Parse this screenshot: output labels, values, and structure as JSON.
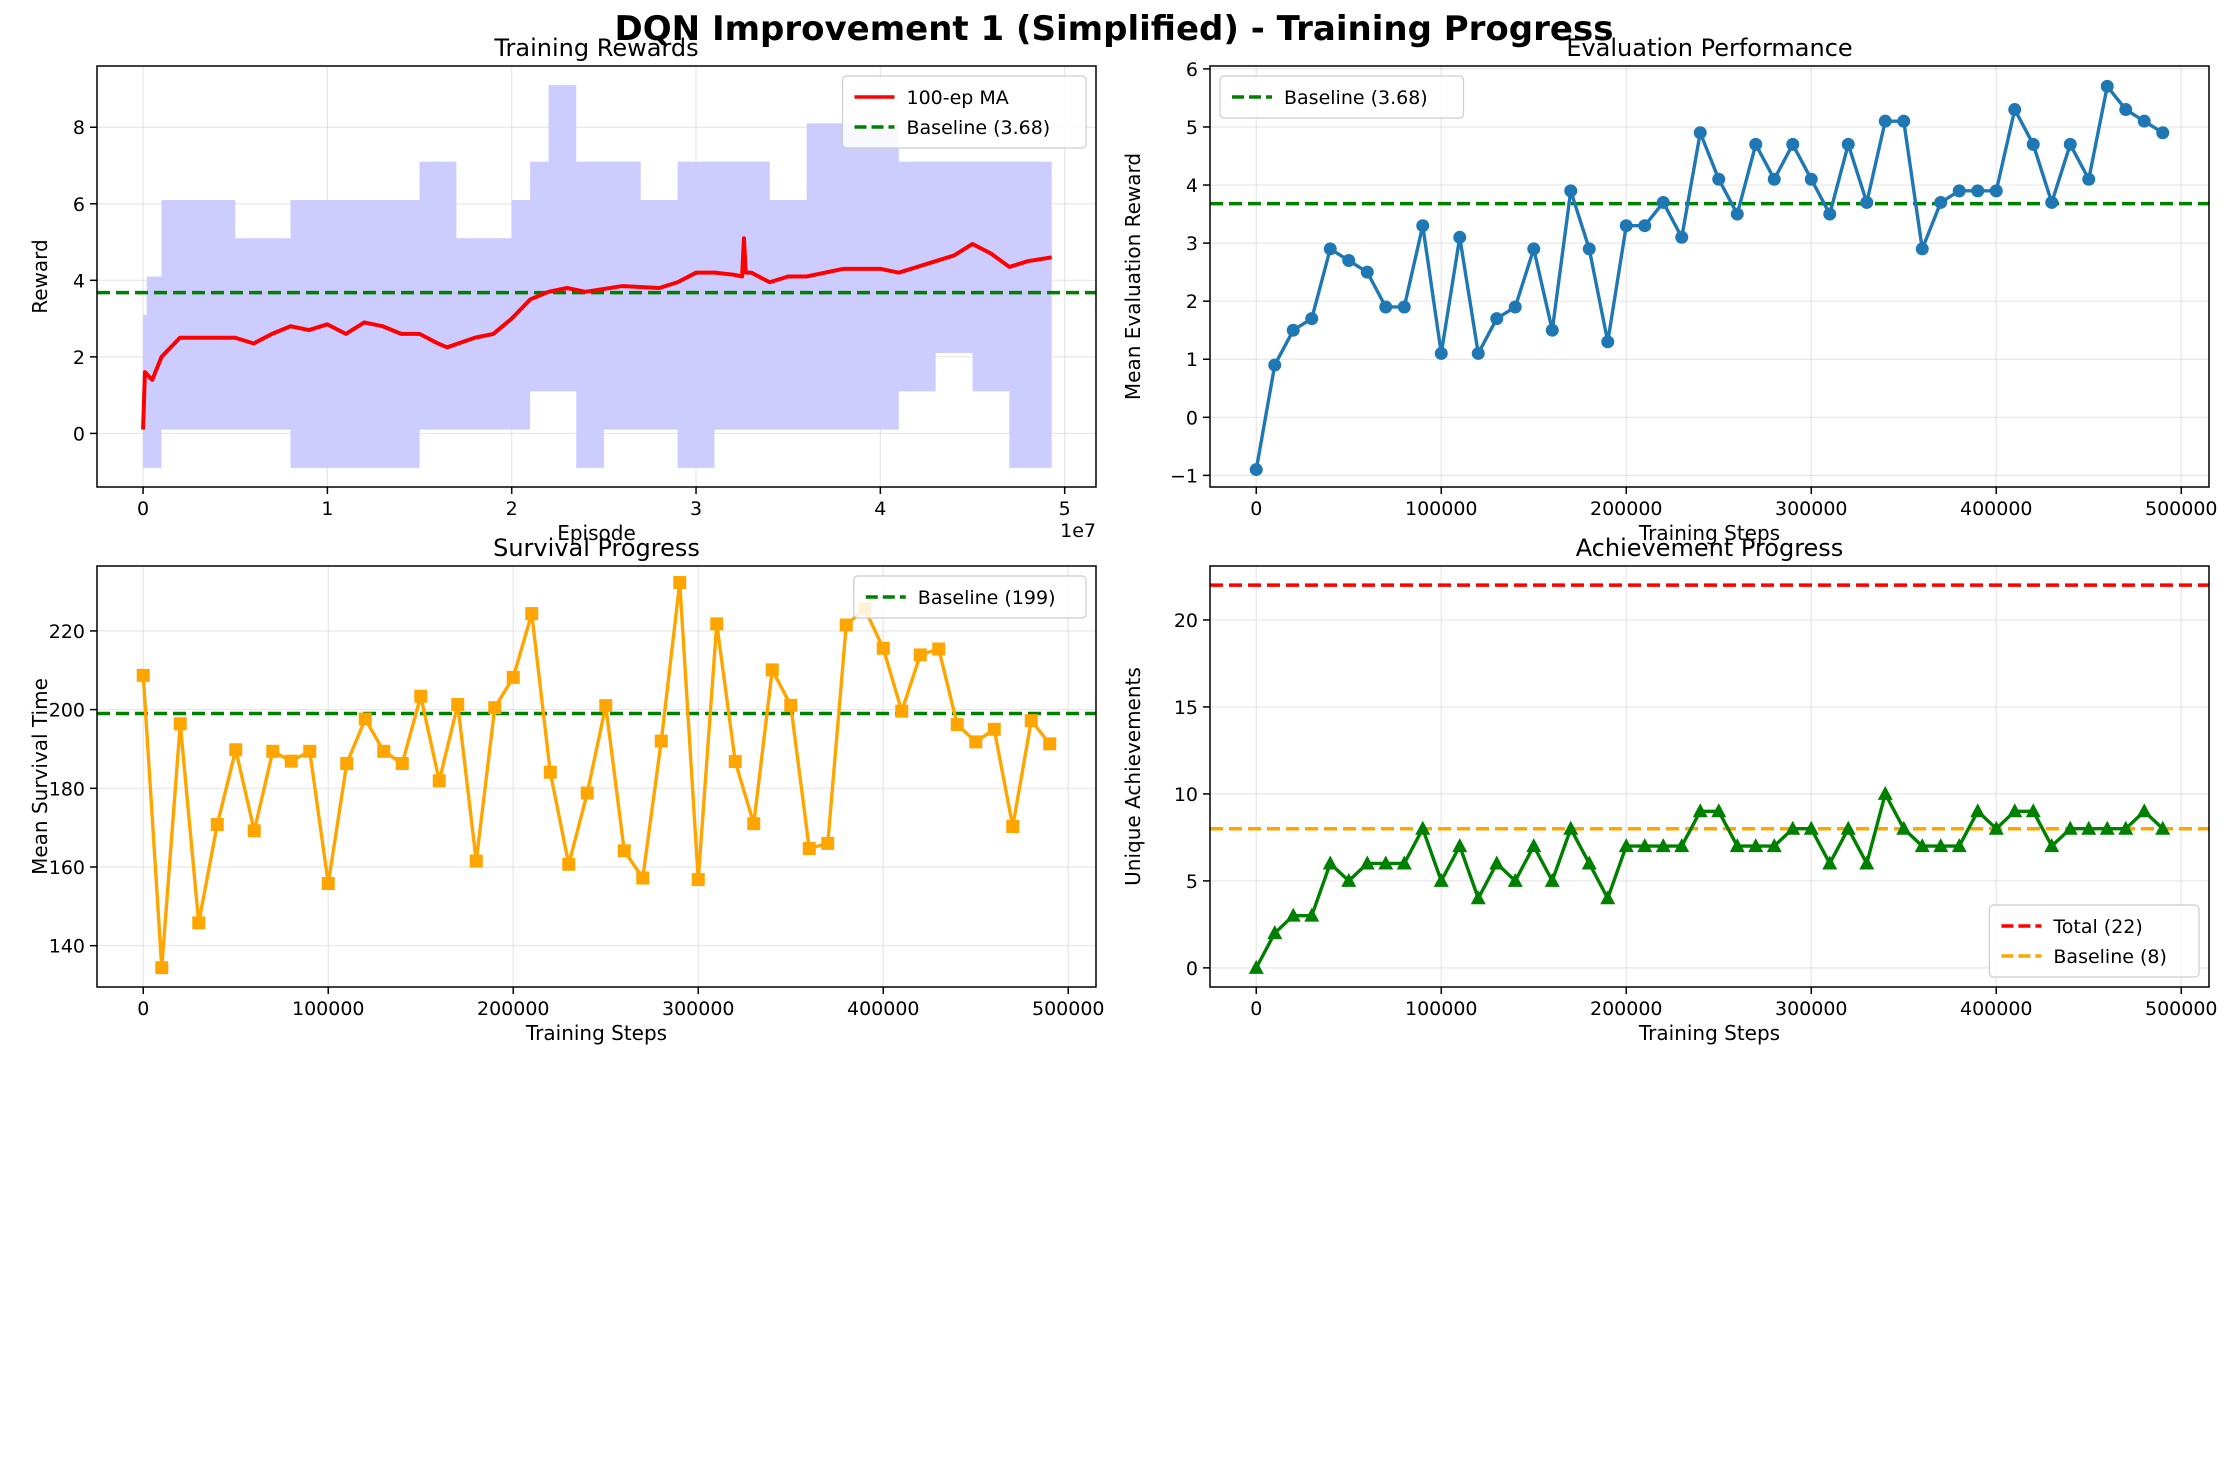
{
  "figure": {
    "title": "DQN Improvement 1 (Simplified) - Training Progress"
  },
  "chart_data": [
    {
      "id": "rewards",
      "type": "line",
      "title": "Training Rewards",
      "xlabel": "Episode",
      "ylabel": "Reward",
      "xlim": [
        -2500000.0,
        51700000.0
      ],
      "ylim": [
        -1.4,
        9.6
      ],
      "x_offset_label": "1e7",
      "xticks": [
        0,
        10000000.0,
        20000000.0,
        30000000.0,
        40000000.0,
        50000000.0
      ],
      "xtick_labels": [
        "0",
        "1",
        "2",
        "3",
        "4",
        "5"
      ],
      "yticks": [
        0,
        2,
        4,
        6,
        8
      ],
      "grid": true,
      "legend": "top-right",
      "band": {
        "color": "#ccccff",
        "x": [
          0,
          200000.0,
          500000.0,
          1000000.0,
          3000000.0,
          5000000.0,
          8000000.0,
          11000000.0,
          13000000.0,
          15000000.0,
          17000000.0,
          20000000.0,
          21000000.0,
          22000000.0,
          23500000.0,
          25000000.0,
          27000000.0,
          29000000.0,
          31000000.0,
          34000000.0,
          36000000.0,
          39000000.0,
          41000000.0,
          43000000.0,
          45000000.0,
          47000000.0,
          49300000.0
        ],
        "upper": [
          3.1,
          4.1,
          4.1,
          6.1,
          6.1,
          5.1,
          6.1,
          6.1,
          6.1,
          7.1,
          5.1,
          6.1,
          7.1,
          9.1,
          7.1,
          7.1,
          6.1,
          7.1,
          7.1,
          6.1,
          8.1,
          8.1,
          7.1,
          7.1,
          7.1,
          7.1,
          8.1
        ],
        "lower": [
          -0.9,
          -0.9,
          -0.9,
          0.1,
          0.1,
          0.1,
          -0.9,
          -0.9,
          -0.9,
          0.1,
          0.1,
          0.1,
          1.1,
          1.1,
          -0.9,
          0.1,
          0.1,
          -0.9,
          0.1,
          0.1,
          0.1,
          0.1,
          1.1,
          2.1,
          1.1,
          -0.9,
          -0.9
        ]
      },
      "series": [
        {
          "name": "100-ep MA",
          "color": "#ff0000",
          "x": [
            0,
            100000.0,
            500000.0,
            1000000.0,
            2000000.0,
            3000000.0,
            5000000.0,
            6000000.0,
            7000000.0,
            8000000.0,
            9000000.0,
            10000000.0,
            11000000.0,
            12000000.0,
            13000000.0,
            14000000.0,
            15000000.0,
            16000000.0,
            16500000.0,
            18000000.0,
            19000000.0,
            20000000.0,
            21000000.0,
            22000000.0,
            23000000.0,
            24000000.0,
            26000000.0,
            28000000.0,
            29000000.0,
            30000000.0,
            31000000.0,
            32000000.0,
            32500000.0,
            32600000.0,
            32700000.0,
            33000000.0,
            34000000.0,
            35000000.0,
            36000000.0,
            38000000.0,
            40000000.0,
            41000000.0,
            42000000.0,
            43000000.0,
            44000000.0,
            45000000.0,
            46000000.0,
            47000000.0,
            48000000.0,
            49300000.0
          ],
          "y": [
            0.1,
            1.6,
            1.4,
            2.0,
            2.5,
            2.5,
            2.5,
            2.35,
            2.6,
            2.8,
            2.7,
            2.85,
            2.6,
            2.9,
            2.8,
            2.6,
            2.6,
            2.35,
            2.25,
            2.5,
            2.6,
            3.0,
            3.5,
            3.7,
            3.8,
            3.7,
            3.85,
            3.8,
            3.95,
            4.2,
            4.2,
            4.15,
            4.1,
            5.1,
            4.2,
            4.2,
            3.95,
            4.1,
            4.1,
            4.3,
            4.3,
            4.2,
            4.35,
            4.5,
            4.65,
            4.95,
            4.7,
            4.35,
            4.5,
            4.6
          ]
        }
      ],
      "reference_lines": [
        {
          "name": "Baseline (3.68)",
          "value": 3.68,
          "color": "#008000"
        }
      ]
    },
    {
      "id": "evaluation",
      "type": "line",
      "title": "Evaluation Performance",
      "xlabel": "Training Steps",
      "ylabel": "Mean Evaluation Reward",
      "xlim": [
        -25000,
        515000
      ],
      "ylim": [
        -1.2,
        6.05
      ],
      "xticks": [
        0,
        100000,
        200000,
        300000,
        400000,
        500000
      ],
      "yticks": [
        -1,
        0,
        1,
        2,
        3,
        4,
        5,
        6
      ],
      "grid": true,
      "legend": "top-left",
      "series": [
        {
          "name": "",
          "color": "#1f77b4",
          "marker": "circle",
          "x": [
            0,
            10000,
            20000,
            30000,
            40000,
            50000,
            60000,
            70000,
            80000,
            90000,
            100000,
            110000,
            120000,
            130000,
            140000,
            150000,
            160000,
            170000,
            180000,
            190000,
            200000,
            210000,
            220000,
            230000,
            240000,
            250000,
            260000,
            270000,
            280000,
            290000,
            300000,
            310000,
            320000,
            330000,
            340000,
            350000,
            360000,
            370000,
            380000,
            390000,
            400000,
            410000,
            420000,
            430000,
            440000,
            450000,
            460000,
            470000,
            480000,
            490000
          ],
          "y": [
            -0.9,
            0.9,
            1.5,
            1.7,
            2.9,
            2.7,
            2.5,
            1.9,
            1.9,
            3.3,
            1.1,
            3.1,
            1.1,
            1.7,
            1.9,
            2.9,
            1.5,
            3.9,
            2.9,
            1.3,
            3.3,
            3.3,
            3.7,
            3.1,
            4.9,
            4.1,
            3.5,
            4.7,
            4.1,
            4.7,
            4.1,
            3.5,
            4.7,
            3.7,
            5.1,
            5.1,
            2.9,
            3.7,
            3.9,
            3.9,
            3.9,
            5.3,
            4.7,
            3.7,
            4.7,
            4.1,
            5.7,
            5.3,
            5.1,
            4.9
          ]
        }
      ],
      "reference_lines": [
        {
          "name": "Baseline (3.68)",
          "value": 3.68,
          "color": "#008000"
        }
      ]
    },
    {
      "id": "survival",
      "type": "line",
      "title": "Survival Progress",
      "xlabel": "Training Steps",
      "ylabel": "Mean Survival Time",
      "xlim": [
        -25000,
        515000
      ],
      "ylim": [
        129.5,
        236.5
      ],
      "xticks": [
        0,
        100000,
        200000,
        300000,
        400000,
        500000
      ],
      "yticks": [
        140,
        160,
        180,
        200,
        220
      ],
      "grid": true,
      "legend": "top-right",
      "series": [
        {
          "name": "",
          "color": "#ffa500",
          "marker": "square",
          "x": [
            0,
            10000,
            20000,
            30000,
            40000,
            50000,
            60000,
            70000,
            80000,
            90000,
            100000,
            110000,
            120000,
            130000,
            140000,
            150000,
            160000,
            170000,
            180000,
            190000,
            200000,
            210000,
            220000,
            230000,
            240000,
            250000,
            260000,
            270000,
            280000,
            290000,
            300000,
            310000,
            320000,
            330000,
            340000,
            350000,
            360000,
            370000,
            380000,
            390000,
            400000,
            410000,
            420000,
            430000,
            440000,
            450000,
            460000,
            470000,
            480000,
            490000
          ],
          "y": [
            208.7,
            134.4,
            196.4,
            145.8,
            170.8,
            189.8,
            169.2,
            189.4,
            186.9,
            189.4,
            155.8,
            186.3,
            197.6,
            189.4,
            186.3,
            203.4,
            181.9,
            201.3,
            161.5,
            200.5,
            208.2,
            224.4,
            184.1,
            160.7,
            178.8,
            201.0,
            164.1,
            157.2,
            192.0,
            232.3,
            156.8,
            221.8,
            186.8,
            171.0,
            210.1,
            201.1,
            164.7,
            166.0,
            221.5,
            225.6,
            215.6,
            199.6,
            213.9,
            215.4,
            196.2,
            191.8,
            195.0,
            170.3,
            197.2,
            191.3
          ]
        }
      ],
      "reference_lines": [
        {
          "name": "Baseline (199)",
          "value": 199,
          "color": "#008000"
        }
      ]
    },
    {
      "id": "achievements",
      "type": "line",
      "title": "Achievement Progress",
      "xlabel": "Training Steps",
      "ylabel": "Unique Achievements",
      "xlim": [
        -25000,
        515000
      ],
      "ylim": [
        -1.1,
        23.1
      ],
      "xticks": [
        0,
        100000,
        200000,
        300000,
        400000,
        500000
      ],
      "yticks": [
        0,
        5,
        10,
        15,
        20
      ],
      "grid": true,
      "legend": "bottom-right",
      "series": [
        {
          "name": "",
          "color": "#008000",
          "marker": "triangle",
          "x": [
            0,
            10000,
            20000,
            30000,
            40000,
            50000,
            60000,
            70000,
            80000,
            90000,
            100000,
            110000,
            120000,
            130000,
            140000,
            150000,
            160000,
            170000,
            180000,
            190000,
            200000,
            210000,
            220000,
            230000,
            240000,
            250000,
            260000,
            270000,
            280000,
            290000,
            300000,
            310000,
            320000,
            330000,
            340000,
            350000,
            360000,
            370000,
            380000,
            390000,
            400000,
            410000,
            420000,
            430000,
            440000,
            450000,
            460000,
            470000,
            480000,
            490000
          ],
          "y": [
            0,
            2,
            3,
            3,
            6,
            5,
            6,
            6,
            6,
            8,
            5,
            7,
            4,
            6,
            5,
            7,
            5,
            8,
            6,
            4,
            7,
            7,
            7,
            7,
            9,
            9,
            7,
            7,
            7,
            8,
            8,
            6,
            8,
            6,
            10,
            8,
            7,
            7,
            7,
            9,
            8,
            9,
            9,
            7,
            8,
            8,
            8,
            8,
            9,
            8
          ]
        }
      ],
      "reference_lines": [
        {
          "name": "Total (22)",
          "value": 22,
          "color": "#ff0000"
        },
        {
          "name": "Baseline (8)",
          "value": 8,
          "color": "#ffa500"
        }
      ]
    }
  ]
}
